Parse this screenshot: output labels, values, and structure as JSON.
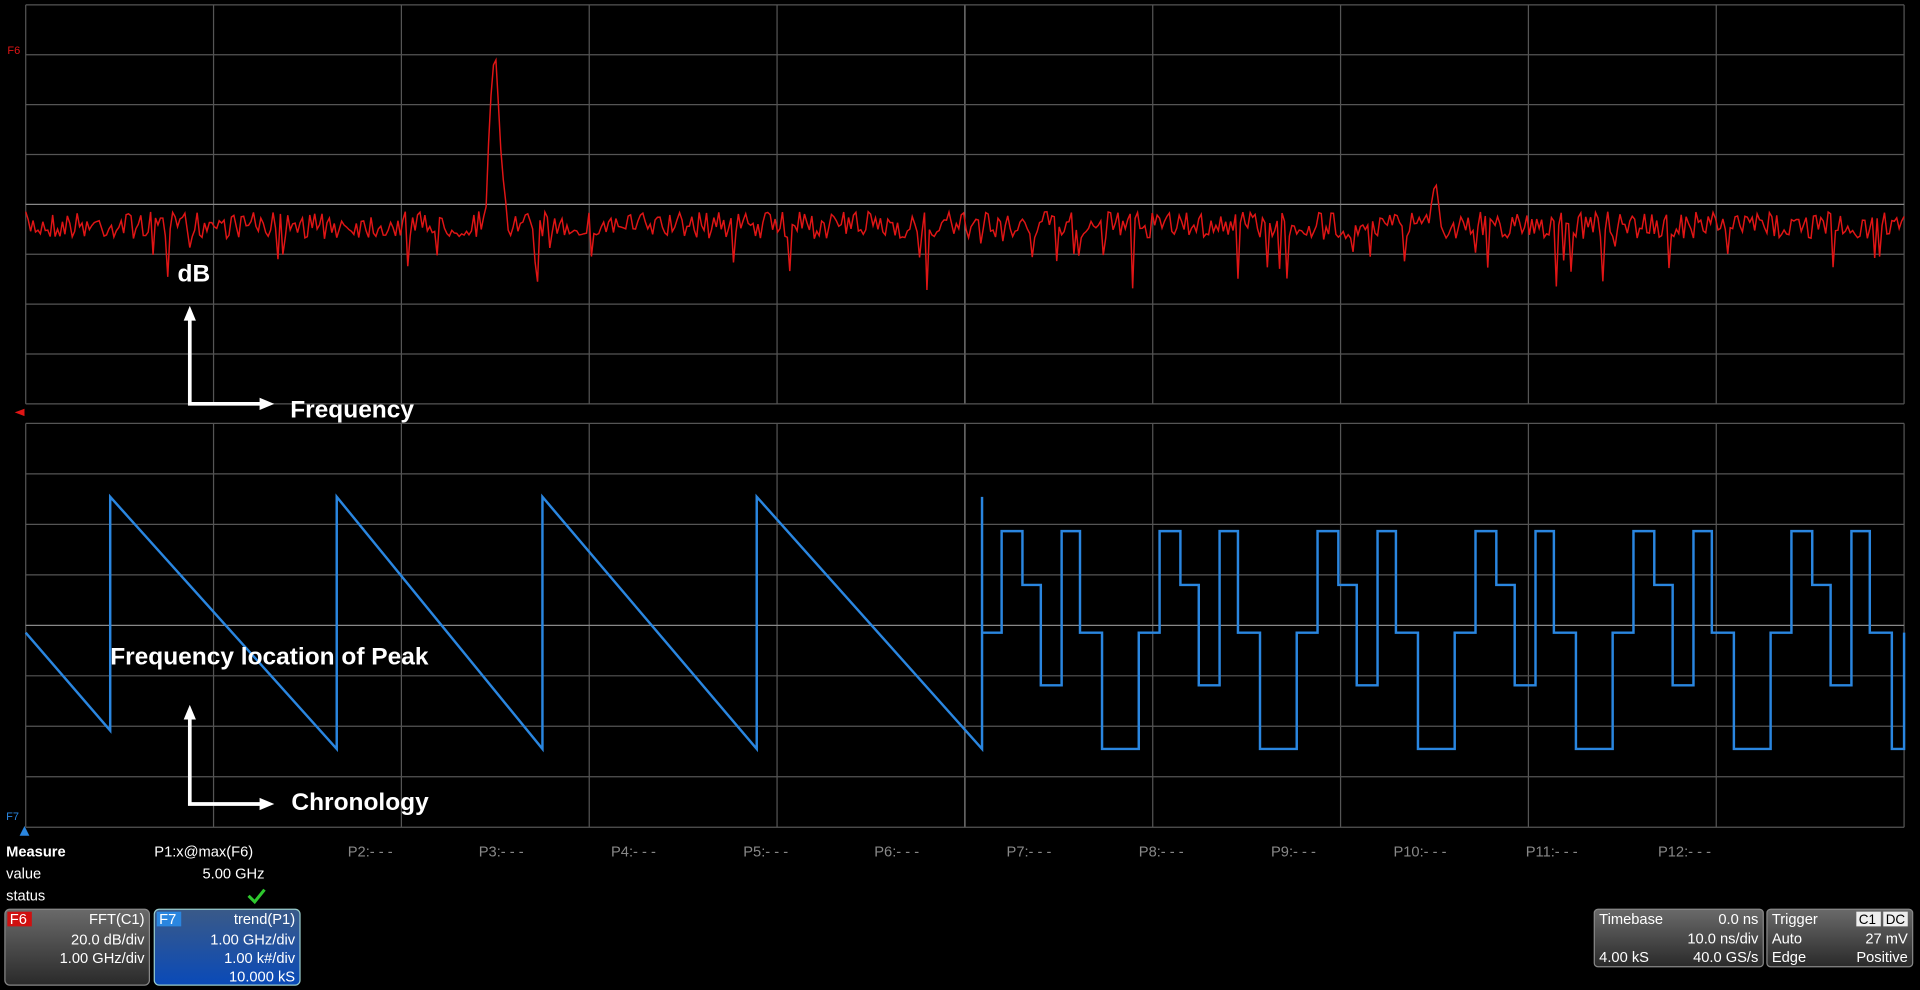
{
  "annotations": {
    "top_y": "dB",
    "top_x": "Frequency",
    "bottom_y": "Frequency location of Peak",
    "bottom_x": "Chronology"
  },
  "measure": {
    "header": "Measure",
    "row_labels": [
      "value",
      "status"
    ],
    "params": [
      {
        "name": "P1:x@max(F6)",
        "value": "5.00 GHz"
      },
      {
        "name": "P2:- - -"
      },
      {
        "name": "P3:- - -"
      },
      {
        "name": "P4:- - -"
      },
      {
        "name": "P5:- - -"
      },
      {
        "name": "P6:- - -"
      },
      {
        "name": "P7:- - -"
      },
      {
        "name": "P8:- - -"
      },
      {
        "name": "P9:- - -"
      },
      {
        "name": "P10:- - -"
      },
      {
        "name": "P11:- - -"
      },
      {
        "name": "P12:- - -"
      }
    ]
  },
  "traces": [
    {
      "tag": "F6",
      "source": "FFT(C1)",
      "lines": [
        "20.0 dB/div",
        "1.00 GHz/div"
      ]
    },
    {
      "tag": "F7",
      "source": "trend(P1)",
      "lines": [
        "1.00 GHz/div",
        "1.00 k#/div",
        "10.000 kS"
      ]
    }
  ],
  "timebase": {
    "title": "Timebase",
    "delay": "0.0 ns",
    "scale": "10.0 ns/div",
    "points": "4.00 kS",
    "rate": "40.0 GS/s"
  },
  "trigger": {
    "title": "Trigger",
    "source": "C1",
    "coupling": "DC",
    "mode": "Auto",
    "level": "27 mV",
    "type": "Edge",
    "slope": "Positive"
  }
}
